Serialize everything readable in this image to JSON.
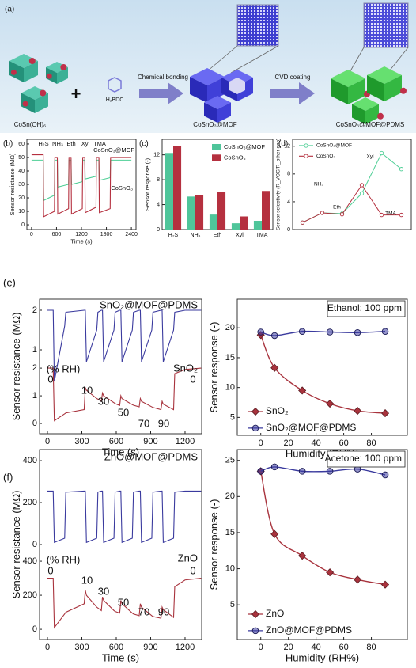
{
  "panel_labels": [
    "(a)",
    "(b)",
    "(c)",
    "(d)",
    "(e)",
    "(f)"
  ],
  "illustration": {
    "labels": [
      "CoSn(OH)₆",
      "H₂BDC",
      "Chemical bonding",
      "CoSnO₃@MOF",
      "CVD coating",
      "CoSnO₃@MOF@PDMS"
    ]
  },
  "chart_data": [
    {
      "type": "line",
      "x_label": "Time (s)",
      "y_label": "Sensor resistance (MΩ)",
      "x": [
        0,
        280,
        290,
        550,
        560,
        620,
        630,
        890,
        900,
        950,
        960,
        1220,
        1230,
        1280,
        1290,
        1550,
        1560,
        1620,
        1630,
        1890,
        1900,
        2400
      ],
      "series": [
        {
          "name": "CoSnO₃@MOF",
          "color": "#4fcf96",
          "values": [
            48,
            48,
            18,
            22,
            48,
            48,
            28,
            30,
            48,
            48,
            30,
            32,
            48,
            48,
            34,
            36,
            48,
            48,
            33,
            35,
            48,
            48
          ]
        },
        {
          "name": "CoSnO₃",
          "color": "#b5303f",
          "values": [
            52,
            52,
            6,
            10,
            50,
            50,
            8,
            12,
            50,
            50,
            8,
            12,
            50,
            50,
            9,
            13,
            50,
            50,
            9,
            12,
            50,
            50
          ]
        }
      ],
      "xlim": [
        -112,
        2512
      ],
      "xticks": [
        0,
        600,
        1200,
        1800,
        2400
      ],
      "ylim": [
        -3.5,
        63.5
      ],
      "yticks": [
        0,
        10,
        20,
        30,
        40,
        50,
        60
      ],
      "annotations": [
        "H₂S",
        "NH₃",
        "Eth",
        "Xyl",
        "TMA"
      ]
    },
    {
      "type": "bar",
      "y_label": "Sensor response (-)",
      "categories": [
        "H₂S",
        "NH₃",
        "Eth",
        "Xyl",
        "TMA"
      ],
      "series": [
        {
          "name": "CoSnO₃@MOF",
          "color": "#4fc59a",
          "values": [
            12.3,
            5.3,
            2.4,
            1.0,
            1.4
          ]
        },
        {
          "name": "CoSnO₃",
          "color": "#b5303f",
          "values": [
            13.4,
            5.5,
            6.0,
            2.1,
            6.2
          ]
        }
      ],
      "ylim": [
        0,
        14.5
      ],
      "yticks": [
        0,
        4,
        8,
        12
      ],
      "legend": "upper right"
    },
    {
      "type": "line",
      "y_label": "Sensor selectivity (R_VOC/R_other gas)",
      "categories": [
        null,
        null,
        null,
        null,
        null,
        null
      ],
      "series": [
        {
          "name": "CoSnO₃@MOF",
          "color": "#4fcf96",
          "marker": "circle",
          "values": [
            1.0,
            2.4,
            2.3,
            5.2,
            11.0,
            8.7
          ]
        },
        {
          "name": "CoSnO₃",
          "color": "#b5303f",
          "marker": "circle",
          "values": [
            1.0,
            2.4,
            2.2,
            6.4,
            2.1,
            2.1
          ]
        }
      ],
      "ylim": [
        0,
        13
      ],
      "yticks": [
        0,
        4,
        8,
        12
      ],
      "legend": "upper left",
      "annotations": [
        "NH₃",
        "Eth",
        "Xyl",
        "TMA"
      ]
    },
    {
      "type": "line",
      "x_label": "Time (s)",
      "y_label": "Sensor resistance (MΩ)",
      "x": [
        0,
        50,
        60,
        150,
        160,
        320,
        330,
        340,
        430,
        440,
        470,
        480,
        490,
        580,
        590,
        630,
        640,
        650,
        740,
        750,
        800,
        810,
        820,
        910,
        920,
        990,
        1000,
        1010,
        1100,
        1110,
        1200,
        1340
      ],
      "series": [
        {
          "name": "SnO₂@MOF@PDMS",
          "color": "#3a3a9e",
          "axis": "y2",
          "values": [
            2,
            2,
            0.2,
            1.6,
            1.95,
            2,
            2,
            0.7,
            1.5,
            1.95,
            2,
            2,
            0.7,
            1.5,
            1.95,
            2,
            2,
            0.7,
            1.5,
            1.95,
            2,
            2,
            0.7,
            1.5,
            1.95,
            2,
            2,
            0.7,
            1.5,
            1.95,
            2,
            2
          ]
        },
        {
          "name": "SnO₂",
          "color": "#a8333d",
          "values": [
            2,
            2,
            0.1,
            0.35,
            0.38,
            0.5,
            1.3,
            1.2,
            0.9,
            0.88,
            0.8,
            1.1,
            1.0,
            0.75,
            0.72,
            0.65,
            1.0,
            0.9,
            0.68,
            0.66,
            0.6,
            0.9,
            0.8,
            0.6,
            0.58,
            0.5,
            0.8,
            0.7,
            0.5,
            1.8,
            1.95,
            2
          ]
        }
      ],
      "xlim": [
        -69,
        1345
      ],
      "xticks": [
        0,
        300,
        600,
        900,
        1200
      ],
      "ylim": [
        -0.37,
        4.49
      ],
      "yticks": [
        0,
        1,
        2
      ],
      "y2lim": [
        -1.12,
        2.28
      ],
      "y2ticks": [
        1,
        2
      ],
      "annotations": [
        "(% RH)",
        "0",
        "10",
        "30",
        "50",
        "70",
        "90",
        "0"
      ]
    },
    {
      "type": "scatter",
      "x_label": "Humidity (RH%)",
      "y_label": "Sensor  response (-)",
      "annotation": "Ethanol: 100 ppm",
      "x": [
        0,
        10,
        30,
        50,
        70,
        90
      ],
      "series": [
        {
          "name": "SnO₂",
          "color": "#a8333d",
          "marker": "diamond",
          "values": [
            18.8,
            13.3,
            9.5,
            7.3,
            6.1,
            5.7
          ]
        },
        {
          "name": "SnO₂@MOF@PDMS",
          "color": "#3a3a9e",
          "marker": "circle",
          "values": [
            19.3,
            18.7,
            19.4,
            19.3,
            19.2,
            19.4
          ]
        }
      ],
      "xlim": [
        -17,
        106
      ],
      "xticks": [
        0,
        20,
        40,
        60,
        80
      ],
      "ylim": [
        2,
        24.8
      ],
      "yticks": [
        5,
        10,
        15,
        20
      ],
      "legend": "lower left"
    },
    {
      "type": "line",
      "x_label": "Time (s)",
      "y_label": "Sensor resistance (MΩ)",
      "x": [
        0,
        50,
        60,
        150,
        160,
        320,
        330,
        340,
        430,
        440,
        470,
        480,
        490,
        580,
        590,
        630,
        640,
        650,
        740,
        750,
        800,
        810,
        820,
        910,
        920,
        990,
        1000,
        1010,
        1100,
        1110,
        1200,
        1340
      ],
      "series": [
        {
          "name": "ZnO@MOF@PDMS",
          "color": "#3a3a9e",
          "axis": "y2",
          "values": [
            255,
            255,
            10,
            30,
            250,
            255,
            255,
            10,
            30,
            250,
            255,
            255,
            10,
            30,
            250,
            255,
            255,
            10,
            30,
            250,
            255,
            255,
            10,
            30,
            250,
            255,
            255,
            10,
            30,
            250,
            255,
            255
          ]
        },
        {
          "name": "ZnO",
          "color": "#a8333d",
          "values": [
            300,
            300,
            10,
            90,
            100,
            150,
            230,
            200,
            130,
            125,
            110,
            190,
            170,
            110,
            105,
            95,
            170,
            150,
            95,
            90,
            80,
            150,
            130,
            80,
            75,
            65,
            130,
            115,
            70,
            250,
            290,
            300
          ]
        }
      ],
      "xlim": [
        -69,
        1345
      ],
      "xticks": [
        0,
        300,
        600,
        900,
        1200
      ],
      "ylim": [
        -60,
        1056
      ],
      "yticks": [
        0,
        200,
        400
      ],
      "y2lim": [
        -453,
        453
      ],
      "y2ticks": [
        0,
        200,
        400
      ],
      "annotations": [
        "(% RH)",
        "0",
        "10",
        "30",
        "50",
        "70",
        "90",
        "0"
      ]
    },
    {
      "type": "scatter",
      "x_label": "Humidity (RH%)",
      "y_label": "Sensor  response (-)",
      "annotation": "Acetone: 100 ppm",
      "x": [
        0,
        10,
        30,
        50,
        70,
        90
      ],
      "series": [
        {
          "name": "ZnO",
          "color": "#a8333d",
          "marker": "diamond",
          "values": [
            23.5,
            14.8,
            11.8,
            9.5,
            8.5,
            7.8
          ]
        },
        {
          "name": "ZnO@MOF@PDMS",
          "color": "#3a3a9e",
          "marker": "circle",
          "values": [
            23.5,
            24.1,
            23.5,
            23.5,
            23.8,
            23.0
          ]
        }
      ],
      "xlim": [
        -17,
        106
      ],
      "xticks": [
        0,
        20,
        40,
        60,
        80
      ],
      "ylim": [
        0.2,
        26.5
      ],
      "yticks": [
        5,
        10,
        15,
        20,
        25
      ],
      "legend": "lower left"
    }
  ]
}
